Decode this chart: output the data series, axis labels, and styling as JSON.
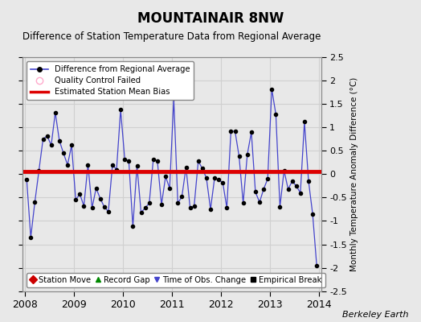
{
  "title": "MOUNTAINAIR 8NW",
  "subtitle": "Difference of Station Temperature Data from Regional Average",
  "ylabel_right": "Monthly Temperature Anomaly Difference (°C)",
  "background_color": "#e8e8e8",
  "plot_bg_color": "#e8e8e8",
  "xlim": [
    2007.95,
    2014.05
  ],
  "ylim": [
    -2.5,
    2.5
  ],
  "yticks": [
    -2.5,
    -2,
    -1.5,
    -1,
    -0.5,
    0,
    0.5,
    1,
    1.5,
    2,
    2.5
  ],
  "xticks": [
    2008,
    2009,
    2010,
    2011,
    2012,
    2013,
    2014
  ],
  "bias_y": 0.05,
  "bias_color": "#dd0000",
  "line_color": "#4444cc",
  "marker_color": "#000000",
  "grid_color": "#d0d0d0",
  "berkeley_earth_text": "Berkeley Earth",
  "time_series": [
    [
      2008.042,
      -0.12
    ],
    [
      2008.125,
      -1.35
    ],
    [
      2008.208,
      -0.6
    ],
    [
      2008.292,
      0.08
    ],
    [
      2008.375,
      0.75
    ],
    [
      2008.458,
      0.82
    ],
    [
      2008.542,
      0.62
    ],
    [
      2008.625,
      1.32
    ],
    [
      2008.708,
      0.72
    ],
    [
      2008.792,
      0.45
    ],
    [
      2008.875,
      0.2
    ],
    [
      2008.958,
      0.62
    ],
    [
      2009.042,
      -0.55
    ],
    [
      2009.125,
      -0.42
    ],
    [
      2009.208,
      -0.68
    ],
    [
      2009.292,
      0.2
    ],
    [
      2009.375,
      -0.72
    ],
    [
      2009.458,
      -0.3
    ],
    [
      2009.542,
      -0.52
    ],
    [
      2009.625,
      -0.7
    ],
    [
      2009.708,
      -0.8
    ],
    [
      2009.792,
      0.2
    ],
    [
      2009.875,
      0.1
    ],
    [
      2009.958,
      1.38
    ],
    [
      2010.042,
      0.32
    ],
    [
      2010.125,
      0.28
    ],
    [
      2010.208,
      -1.12
    ],
    [
      2010.292,
      0.18
    ],
    [
      2010.375,
      -0.82
    ],
    [
      2010.458,
      -0.72
    ],
    [
      2010.542,
      -0.62
    ],
    [
      2010.625,
      0.32
    ],
    [
      2010.708,
      0.28
    ],
    [
      2010.792,
      -0.65
    ],
    [
      2010.875,
      -0.05
    ],
    [
      2010.958,
      -0.3
    ],
    [
      2011.042,
      1.62
    ],
    [
      2011.125,
      -0.62
    ],
    [
      2011.208,
      -0.48
    ],
    [
      2011.292,
      0.15
    ],
    [
      2011.375,
      -0.72
    ],
    [
      2011.458,
      -0.68
    ],
    [
      2011.542,
      0.28
    ],
    [
      2011.625,
      0.12
    ],
    [
      2011.708,
      -0.08
    ],
    [
      2011.792,
      -0.75
    ],
    [
      2011.875,
      -0.08
    ],
    [
      2011.958,
      -0.12
    ],
    [
      2012.042,
      -0.18
    ],
    [
      2012.125,
      -0.72
    ],
    [
      2012.208,
      0.92
    ],
    [
      2012.292,
      0.92
    ],
    [
      2012.375,
      0.38
    ],
    [
      2012.458,
      -0.62
    ],
    [
      2012.542,
      0.42
    ],
    [
      2012.625,
      0.9
    ],
    [
      2012.708,
      -0.38
    ],
    [
      2012.792,
      -0.6
    ],
    [
      2012.875,
      -0.32
    ],
    [
      2012.958,
      -0.1
    ],
    [
      2013.042,
      1.82
    ],
    [
      2013.125,
      1.28
    ],
    [
      2013.208,
      -0.7
    ],
    [
      2013.292,
      0.08
    ],
    [
      2013.375,
      -0.32
    ],
    [
      2013.458,
      -0.15
    ],
    [
      2013.542,
      -0.25
    ],
    [
      2013.625,
      -0.4
    ],
    [
      2013.708,
      1.12
    ],
    [
      2013.792,
      -0.15
    ],
    [
      2013.875,
      -0.85
    ],
    [
      2013.958,
      -1.95
    ]
  ]
}
